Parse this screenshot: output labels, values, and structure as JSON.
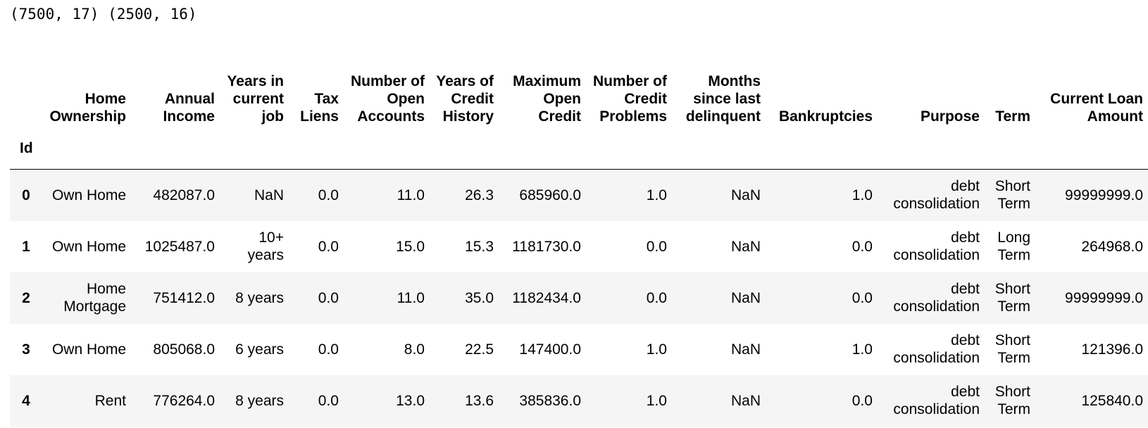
{
  "header": {
    "shape": "(7500, 17) (2500, 16)"
  },
  "table": {
    "index_name": "Id",
    "columns": [
      "Home Ownership",
      "Annual Income",
      "Years in current job",
      "Tax Liens",
      "Number of Open Accounts",
      "Years of Credit History",
      "Maximum Open Credit",
      "Number of Credit Problems",
      "Months since last delinquent",
      "Bankruptcies",
      "Purpose",
      "Term",
      "Current Loan Amount"
    ],
    "rows": [
      {
        "index": "0",
        "cells": [
          "Own Home",
          "482087.0",
          "NaN",
          "0.0",
          "11.0",
          "26.3",
          "685960.0",
          "1.0",
          "NaN",
          "1.0",
          "debt consolidation",
          "Short Term",
          "99999999.0"
        ]
      },
      {
        "index": "1",
        "cells": [
          "Own Home",
          "1025487.0",
          "10+ years",
          "0.0",
          "15.0",
          "15.3",
          "1181730.0",
          "0.0",
          "NaN",
          "0.0",
          "debt consolidation",
          "Long Term",
          "264968.0"
        ]
      },
      {
        "index": "2",
        "cells": [
          "Home Mortgage",
          "751412.0",
          "8 years",
          "0.0",
          "11.0",
          "35.0",
          "1182434.0",
          "0.0",
          "NaN",
          "0.0",
          "debt consolidation",
          "Short Term",
          "99999999.0"
        ]
      },
      {
        "index": "3",
        "cells": [
          "Own Home",
          "805068.0",
          "6 years",
          "0.0",
          "8.0",
          "22.5",
          "147400.0",
          "1.0",
          "NaN",
          "1.0",
          "debt consolidation",
          "Short Term",
          "121396.0"
        ]
      },
      {
        "index": "4",
        "cells": [
          "Rent",
          "776264.0",
          "8 years",
          "0.0",
          "13.0",
          "13.6",
          "385836.0",
          "1.0",
          "NaN",
          "0.0",
          "debt consolidation",
          "Short Term",
          "125840.0"
        ]
      }
    ]
  }
}
